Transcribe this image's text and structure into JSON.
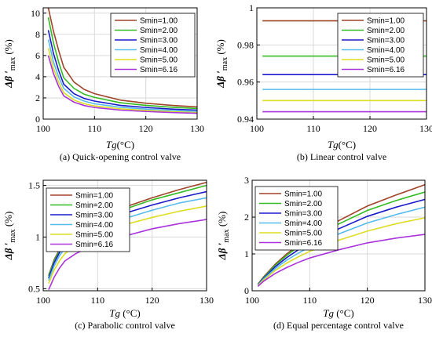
{
  "chart_data": [
    {
      "type": "line",
      "caption": "(a) Quick-opening control valve",
      "xlabel_main": "Tg",
      "xlabel_unit": "(°C)",
      "ylabel_main": "Δβ ′",
      "ylabel_sub": "max",
      "ylabel_unit": " (%)",
      "xlim": [
        100,
        130
      ],
      "ylim": [
        0,
        10.5
      ],
      "xticks": [
        100,
        110,
        120,
        130
      ],
      "yticks": [
        0,
        2,
        4,
        6,
        8,
        10
      ],
      "grid": true,
      "legend_position": "top-right",
      "series": [
        {
          "name": "Smin=1.00",
          "color": "#a0442a",
          "x": [
            101,
            102,
            103,
            104,
            106,
            108,
            110,
            115,
            120,
            125,
            130
          ],
          "y": [
            10.5,
            8.3,
            6.5,
            4.9,
            3.5,
            2.8,
            2.4,
            1.8,
            1.5,
            1.3,
            1.15
          ]
        },
        {
          "name": "Smin=2.00",
          "color": "#33bb22",
          "x": [
            101,
            102,
            103,
            104,
            106,
            108,
            110,
            115,
            120,
            125,
            130
          ],
          "y": [
            9.6,
            7.2,
            5.4,
            3.9,
            2.9,
            2.35,
            2.05,
            1.55,
            1.3,
            1.12,
            1.0
          ]
        },
        {
          "name": "Smin=3.00",
          "color": "#1a1acc",
          "x": [
            101,
            102,
            103,
            104,
            106,
            108,
            110,
            115,
            120,
            125,
            130
          ],
          "y": [
            8.4,
            6.2,
            4.6,
            3.3,
            2.4,
            1.95,
            1.7,
            1.3,
            1.1,
            0.95,
            0.85
          ]
        },
        {
          "name": "Smin=4.00",
          "color": "#55bbee",
          "x": [
            101,
            102,
            103,
            104,
            106,
            108,
            110,
            115,
            120,
            125,
            130
          ],
          "y": [
            7.5,
            5.4,
            4.0,
            2.9,
            2.1,
            1.7,
            1.45,
            1.12,
            0.95,
            0.82,
            0.72
          ]
        },
        {
          "name": "Smin=5.00",
          "color": "#dddd22",
          "x": [
            101,
            102,
            103,
            104,
            106,
            108,
            110,
            115,
            120,
            125,
            130
          ],
          "y": [
            6.7,
            4.8,
            3.5,
            2.5,
            1.8,
            1.45,
            1.25,
            0.97,
            0.82,
            0.7,
            0.62
          ]
        },
        {
          "name": "Smin=6.16",
          "color": "#aa33dd",
          "x": [
            101,
            102,
            103,
            104,
            106,
            108,
            110,
            115,
            120,
            125,
            130
          ],
          "y": [
            6.0,
            4.3,
            3.1,
            2.2,
            1.6,
            1.28,
            1.1,
            0.85,
            0.72,
            0.62,
            0.55
          ]
        }
      ]
    },
    {
      "type": "line",
      "caption": "(b) Linear control valve",
      "xlabel_main": "Tg",
      "xlabel_unit": "(°C)",
      "ylabel_main": "Δβ ′",
      "ylabel_sub": "max",
      "ylabel_unit": " (%)",
      "xlim": [
        100,
        130
      ],
      "ylim": [
        0.94,
        1.0
      ],
      "xticks": [
        100,
        110,
        120,
        130
      ],
      "yticks": [
        0.94,
        0.96,
        0.98,
        1
      ],
      "grid": true,
      "legend_position": "top-right",
      "series": [
        {
          "name": "Smin=1.00",
          "color": "#a0442a",
          "x": [
            101,
            130
          ],
          "y": [
            0.993,
            0.993
          ]
        },
        {
          "name": "Smin=2.00",
          "color": "#33bb22",
          "x": [
            101,
            130
          ],
          "y": [
            0.974,
            0.974
          ]
        },
        {
          "name": "Smin=3.00",
          "color": "#1a1acc",
          "x": [
            101,
            130
          ],
          "y": [
            0.964,
            0.964
          ]
        },
        {
          "name": "Smin=4.00",
          "color": "#55bbee",
          "x": [
            101,
            130
          ],
          "y": [
            0.956,
            0.956
          ]
        },
        {
          "name": "Smin=5.00",
          "color": "#dddd22",
          "x": [
            101,
            130
          ],
          "y": [
            0.95,
            0.95
          ]
        },
        {
          "name": "Smin=6.16",
          "color": "#aa33dd",
          "x": [
            101,
            130
          ],
          "y": [
            0.944,
            0.944
          ]
        }
      ]
    },
    {
      "type": "line",
      "caption": "(c) Parabolic control valve",
      "xlabel_main": "Tg",
      "xlabel_unit": " (°C)",
      "ylabel_main": "Δβ ′",
      "ylabel_sub": "max",
      "ylabel_unit": " (%)",
      "xlim": [
        100,
        130
      ],
      "ylim": [
        0.48,
        1.55
      ],
      "xticks": [
        100,
        110,
        120,
        130
      ],
      "yticks": [
        0.5,
        1,
        1.5
      ],
      "ytick_labels": [
        "0.5",
        "1",
        "1.5"
      ],
      "grid": true,
      "legend_position": "top-left",
      "series": [
        {
          "name": "Smin=1.00",
          "color": "#a0442a",
          "x": [
            101,
            102,
            103,
            104,
            106,
            108,
            110,
            115,
            120,
            125,
            130
          ],
          "y": [
            0.63,
            0.78,
            0.88,
            0.96,
            1.06,
            1.13,
            1.18,
            1.29,
            1.38,
            1.46,
            1.53
          ]
        },
        {
          "name": "Smin=2.00",
          "color": "#33bb22",
          "x": [
            101,
            102,
            103,
            104,
            106,
            108,
            110,
            115,
            120,
            125,
            130
          ],
          "y": [
            0.62,
            0.77,
            0.87,
            0.95,
            1.04,
            1.11,
            1.16,
            1.27,
            1.36,
            1.43,
            1.5
          ]
        },
        {
          "name": "Smin=3.00",
          "color": "#1a1acc",
          "x": [
            101,
            102,
            103,
            104,
            106,
            108,
            110,
            115,
            120,
            125,
            130
          ],
          "y": [
            0.6,
            0.75,
            0.85,
            0.92,
            1.01,
            1.07,
            1.12,
            1.23,
            1.31,
            1.38,
            1.44
          ]
        },
        {
          "name": "Smin=4.00",
          "color": "#55bbee",
          "x": [
            101,
            102,
            103,
            104,
            106,
            108,
            110,
            115,
            120,
            125,
            130
          ],
          "y": [
            0.58,
            0.72,
            0.82,
            0.89,
            0.97,
            1.03,
            1.08,
            1.18,
            1.26,
            1.33,
            1.38
          ]
        },
        {
          "name": "Smin=5.00",
          "color": "#dddd22",
          "x": [
            101,
            102,
            103,
            104,
            106,
            108,
            110,
            115,
            120,
            125,
            130
          ],
          "y": [
            0.55,
            0.68,
            0.77,
            0.84,
            0.92,
            0.98,
            1.02,
            1.12,
            1.19,
            1.25,
            1.3
          ]
        },
        {
          "name": "Smin=6.16",
          "color": "#aa33dd",
          "x": [
            101,
            102,
            103,
            104,
            106,
            108,
            110,
            115,
            120,
            125,
            130
          ],
          "y": [
            0.49,
            0.61,
            0.7,
            0.77,
            0.84,
            0.89,
            0.93,
            1.01,
            1.08,
            1.13,
            1.17
          ]
        }
      ]
    },
    {
      "type": "line",
      "caption": "(d) Equal percentage control valve",
      "xlabel_main": "Tg",
      "xlabel_unit": " (°C)",
      "ylabel_main": "Δβ ′",
      "ylabel_sub": "max",
      "ylabel_unit": " (%)",
      "xlim": [
        100,
        130
      ],
      "ylim": [
        0,
        3
      ],
      "xticks": [
        100,
        110,
        120,
        130
      ],
      "yticks": [
        0,
        1,
        2,
        3
      ],
      "grid": true,
      "legend_position": "top-left",
      "series": [
        {
          "name": "Smin=1.00",
          "color": "#a0442a",
          "x": [
            101,
            102,
            104,
            106,
            108,
            110,
            115,
            120,
            125,
            130
          ],
          "y": [
            0.18,
            0.38,
            0.72,
            1.0,
            1.24,
            1.45,
            1.9,
            2.3,
            2.6,
            2.88
          ]
        },
        {
          "name": "Smin=2.00",
          "color": "#33bb22",
          "x": [
            101,
            102,
            104,
            106,
            108,
            110,
            115,
            120,
            125,
            130
          ],
          "y": [
            0.17,
            0.36,
            0.69,
            0.96,
            1.19,
            1.39,
            1.81,
            2.18,
            2.45,
            2.68
          ]
        },
        {
          "name": "Smin=3.00",
          "color": "#1a1acc",
          "x": [
            101,
            102,
            104,
            106,
            108,
            110,
            115,
            120,
            125,
            130
          ],
          "y": [
            0.16,
            0.34,
            0.65,
            0.9,
            1.11,
            1.3,
            1.68,
            2.02,
            2.27,
            2.48
          ]
        },
        {
          "name": "Smin=4.00",
          "color": "#55bbee",
          "x": [
            101,
            102,
            104,
            106,
            108,
            110,
            115,
            120,
            125,
            130
          ],
          "y": [
            0.15,
            0.32,
            0.6,
            0.83,
            1.02,
            1.19,
            1.54,
            1.84,
            2.07,
            2.27
          ]
        },
        {
          "name": "Smin=5.00",
          "color": "#dddd22",
          "x": [
            101,
            102,
            104,
            106,
            108,
            110,
            115,
            120,
            125,
            130
          ],
          "y": [
            0.14,
            0.29,
            0.55,
            0.75,
            0.92,
            1.07,
            1.37,
            1.62,
            1.82,
            1.98
          ]
        },
        {
          "name": "Smin=6.16",
          "color": "#aa33dd",
          "x": [
            101,
            102,
            104,
            106,
            108,
            110,
            115,
            120,
            125,
            130
          ],
          "y": [
            0.12,
            0.26,
            0.47,
            0.63,
            0.77,
            0.89,
            1.11,
            1.3,
            1.43,
            1.53
          ]
        }
      ]
    }
  ]
}
